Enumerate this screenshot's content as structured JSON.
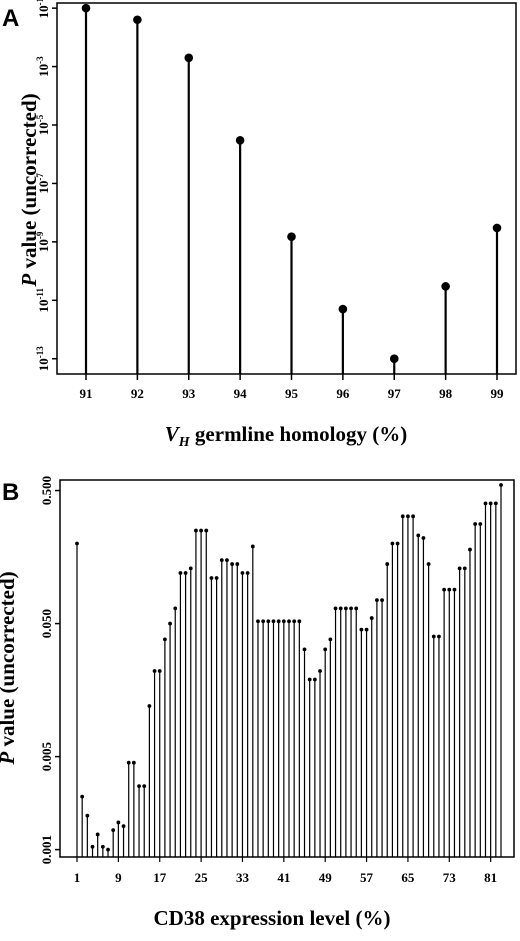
{
  "chart_data": [
    {
      "panel": "A",
      "type": "lollipop",
      "xlabel_main": "V",
      "xlabel_sub": "H",
      "xlabel_rest": " germline homology (%)",
      "ylabel_italic": "P",
      "ylabel_rest": " value (uncorrected)",
      "yscale": "log",
      "ylim": [
        3e-14,
        0.15
      ],
      "y_ticks": [
        {
          "value": 0.1,
          "base": "10",
          "exp": "-1"
        },
        {
          "value": 0.001,
          "base": "10",
          "exp": "-3"
        },
        {
          "value": 1e-05,
          "base": "10",
          "exp": "-5"
        },
        {
          "value": 1e-07,
          "base": "10",
          "exp": "-7"
        },
        {
          "value": 1e-09,
          "base": "10",
          "exp": "-9"
        },
        {
          "value": 1e-11,
          "base": "10",
          "exp": "-11"
        },
        {
          "value": 1e-13,
          "base": "10",
          "exp": "-13"
        }
      ],
      "x": [
        "91",
        "92",
        "93",
        "94",
        "95",
        "96",
        "97",
        "98",
        "99"
      ],
      "values": [
        0.1,
        0.04,
        0.002,
        3e-06,
        1.5e-09,
        5e-12,
        1e-13,
        3e-11,
        3e-09
      ]
    },
    {
      "panel": "B",
      "type": "lollipop",
      "xlabel": "CD38 expression level (%)",
      "ylabel_italic": "P",
      "ylabel_rest": " value (uncorrected)",
      "yscale": "log",
      "ylim": [
        0.00088,
        0.6
      ],
      "y_ticks": [
        {
          "value": 0.5,
          "label": "0.500"
        },
        {
          "value": 0.05,
          "label": "0.050"
        },
        {
          "value": 0.005,
          "label": "0.005"
        },
        {
          "value": 0.001,
          "label": "0.001"
        }
      ],
      "x_ticks": [
        "1",
        "9",
        "17",
        "25",
        "33",
        "41",
        "49",
        "57",
        "65",
        "73",
        "81"
      ],
      "x_start": 1,
      "values": [
        0.2,
        0.0025,
        0.0018,
        0.00105,
        0.0013,
        0.00105,
        0.001,
        0.0014,
        0.0016,
        0.0015,
        0.0045,
        0.0045,
        0.003,
        0.003,
        0.012,
        0.022,
        0.022,
        0.038,
        0.05,
        0.065,
        0.12,
        0.12,
        0.13,
        0.25,
        0.25,
        0.25,
        0.11,
        0.11,
        0.15,
        0.15,
        0.14,
        0.14,
        0.12,
        0.12,
        0.19,
        0.052,
        0.052,
        0.052,
        0.052,
        0.052,
        0.052,
        0.052,
        0.052,
        0.052,
        0.032,
        0.019,
        0.019,
        0.022,
        0.032,
        0.038,
        0.065,
        0.065,
        0.065,
        0.065,
        0.065,
        0.045,
        0.045,
        0.055,
        0.075,
        0.075,
        0.14,
        0.2,
        0.2,
        0.32,
        0.32,
        0.32,
        0.23,
        0.22,
        0.14,
        0.04,
        0.04,
        0.09,
        0.09,
        0.09,
        0.13,
        0.13,
        0.18,
        0.28,
        0.28,
        0.4,
        0.4,
        0.4,
        0.55
      ]
    }
  ]
}
